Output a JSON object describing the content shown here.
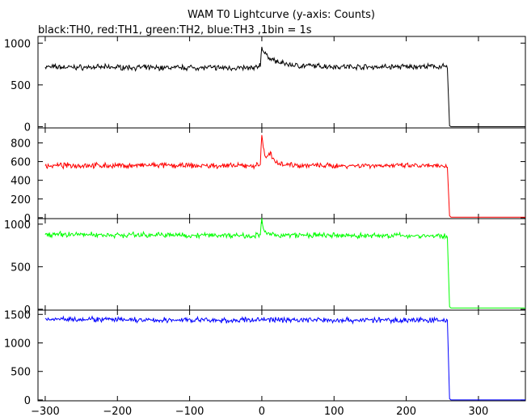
{
  "chart_data": {
    "type": "line",
    "title": "WAM T0 Lightcurve (y-axis: Counts)",
    "subtitle": "black:TH0, red:TH1, green:TH2, blue:TH3 ,1bin = 1s",
    "xlim": [
      -310,
      365
    ],
    "x_ticks": [
      -300,
      -200,
      -100,
      0,
      100,
      200,
      300
    ],
    "x_tick_labels": [
      "−300",
      "−200",
      "−100",
      "0",
      "100",
      "200",
      "300"
    ],
    "grid": false,
    "panels": [
      {
        "series": "TH0",
        "color": "#000000",
        "ylim": [
          -15,
          1080
        ],
        "y_ticks": [
          0,
          500,
          1000
        ],
        "y_tick_labels": [
          "0",
          "500",
          "1000"
        ],
        "x": [
          -300,
          -250,
          -200,
          -150,
          -100,
          -50,
          -10,
          -2,
          0,
          2,
          5,
          10,
          20,
          30,
          50,
          100,
          150,
          200,
          250,
          257,
          260,
          262,
          365
        ],
        "values": [
          715,
          710,
          712,
          705,
          708,
          705,
          700,
          740,
          970,
          900,
          860,
          830,
          780,
          755,
          730,
          720,
          715,
          718,
          720,
          715,
          10,
          0,
          0
        ]
      },
      {
        "series": "TH1",
        "color": "#ff0000",
        "ylim": [
          -10,
          960
        ],
        "y_ticks": [
          0,
          200,
          400,
          600,
          800
        ],
        "y_tick_labels": [
          "0",
          "200",
          "400",
          "600",
          "800"
        ],
        "x": [
          -300,
          -250,
          -200,
          -150,
          -100,
          -50,
          -10,
          -2,
          0,
          2,
          4,
          8,
          12,
          15,
          20,
          30,
          50,
          100,
          150,
          200,
          250,
          257,
          260,
          262,
          365
        ],
        "values": [
          555,
          560,
          555,
          560,
          555,
          555,
          555,
          570,
          900,
          760,
          670,
          640,
          700,
          620,
          600,
          575,
          560,
          555,
          560,
          555,
          550,
          550,
          20,
          5,
          5
        ]
      },
      {
        "series": "TH2",
        "color": "#00ff00",
        "ylim": [
          -10,
          1065
        ],
        "y_ticks": [
          0,
          500,
          1000
        ],
        "y_tick_labels": [
          "0",
          "500",
          "1000"
        ],
        "x": [
          -300,
          -250,
          -200,
          -150,
          -100,
          -50,
          -10,
          -2,
          0,
          2,
          5,
          10,
          20,
          50,
          100,
          150,
          200,
          250,
          257,
          260,
          262,
          365
        ],
        "values": [
          880,
          880,
          870,
          875,
          870,
          870,
          865,
          880,
          1040,
          950,
          900,
          880,
          870,
          870,
          865,
          865,
          865,
          860,
          850,
          30,
          15,
          15
        ]
      },
      {
        "series": "TH3",
        "color": "#0000ff",
        "ylim": [
          -15,
          1575
        ],
        "y_ticks": [
          0,
          500,
          1000,
          1500
        ],
        "y_tick_labels": [
          "0",
          "500",
          "1000",
          "1500"
        ],
        "x": [
          -300,
          -250,
          -200,
          -150,
          -100,
          -50,
          0,
          50,
          100,
          150,
          200,
          250,
          257,
          260,
          262,
          365
        ],
        "values": [
          1420,
          1420,
          1405,
          1395,
          1405,
          1390,
          1410,
          1405,
          1400,
          1400,
          1400,
          1400,
          1390,
          20,
          0,
          0
        ]
      }
    ]
  }
}
